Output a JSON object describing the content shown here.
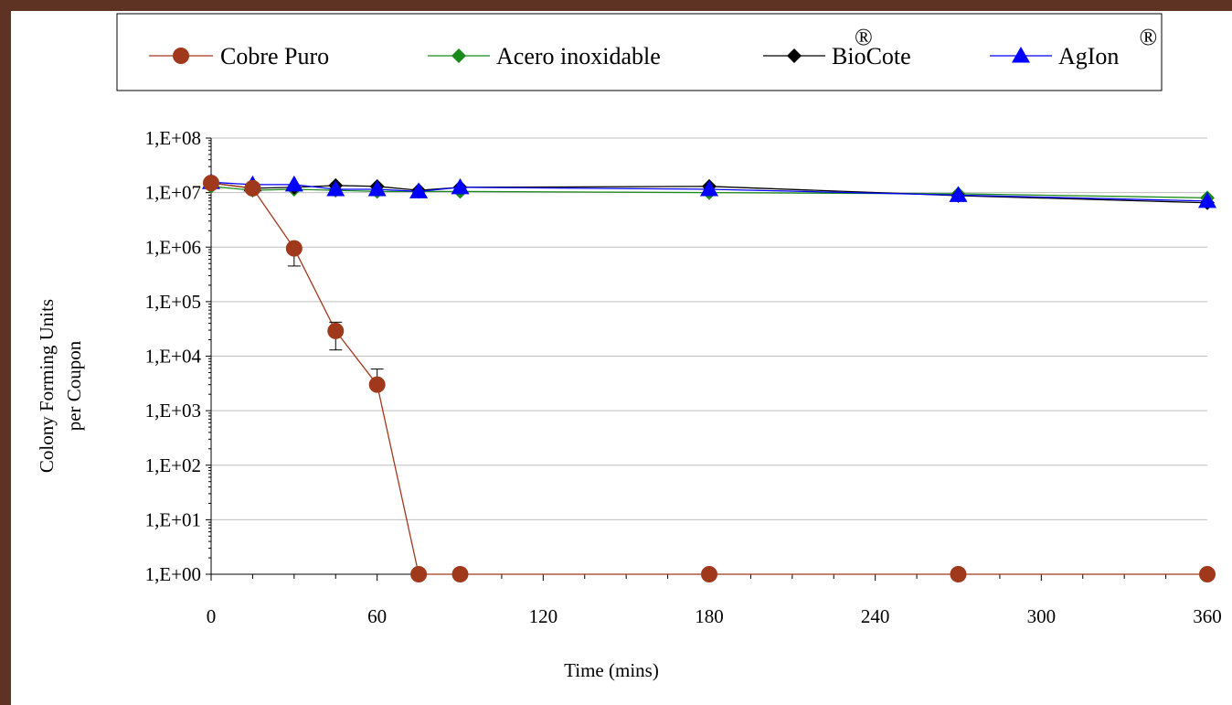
{
  "chart_data": {
    "type": "line",
    "xlabel": "Time (mins)",
    "ylabel_lines": [
      "Colony Forming Units",
      "per Coupon"
    ],
    "x_ticks": [
      0,
      60,
      120,
      180,
      240,
      300,
      360
    ],
    "xlim": [
      0,
      360
    ],
    "y_scale": "log",
    "ylim": [
      1,
      100000000
    ],
    "y_tick_labels": [
      "1,E+00",
      "1,E+01",
      "1,E+02",
      "1,E+03",
      "1,E+04",
      "1,E+05",
      "1,E+06",
      "1,E+07",
      "1,E+08"
    ],
    "grid": "horizontal",
    "legend": {
      "placement": "top",
      "entries": [
        {
          "label": "Cobre Puro",
          "sup": ""
        },
        {
          "label": "Acero inoxidable",
          "sup": ""
        },
        {
          "label": "BioCote",
          "sup": "®"
        },
        {
          "label": "AgIon",
          "sup": "®"
        }
      ]
    },
    "series": [
      {
        "name": "Cobre Puro",
        "color": "#a0391c",
        "marker": "circle",
        "x": [
          0,
          15,
          30,
          45,
          60,
          75,
          90,
          180,
          270,
          360
        ],
        "y": [
          15000000,
          12000000,
          950000,
          29000,
          3000,
          1,
          1,
          1,
          1,
          1
        ],
        "err_hi": [
          null,
          null,
          1000000,
          42000,
          5800,
          null,
          null,
          null,
          null,
          null
        ],
        "err_lo": [
          null,
          null,
          450000,
          13000,
          null,
          null,
          null,
          null,
          null,
          null
        ]
      },
      {
        "name": "Acero inoxidable",
        "color": "#1a8a1a",
        "marker": "diamond",
        "x": [
          0,
          15,
          30,
          45,
          60,
          75,
          90,
          180,
          270,
          360
        ],
        "y": [
          13000000,
          11000000,
          11500000,
          11000000,
          10500000,
          10500000,
          10500000,
          10000000,
          9500000,
          8000000
        ]
      },
      {
        "name": "BioCote",
        "color": "#000000",
        "marker": "diamond",
        "x": [
          0,
          15,
          30,
          45,
          60,
          75,
          90,
          180,
          270,
          360
        ],
        "y": [
          15000000,
          12000000,
          12500000,
          13500000,
          13000000,
          11000000,
          12500000,
          13000000,
          8800000,
          6500000
        ]
      },
      {
        "name": "AgIon",
        "color": "#0000ff",
        "marker": "triangle",
        "x": [
          0,
          15,
          30,
          45,
          60,
          75,
          90,
          180,
          270,
          360
        ],
        "y": [
          15500000,
          14000000,
          14000000,
          11500000,
          11500000,
          10500000,
          12500000,
          11500000,
          9000000,
          7000000
        ]
      }
    ]
  }
}
